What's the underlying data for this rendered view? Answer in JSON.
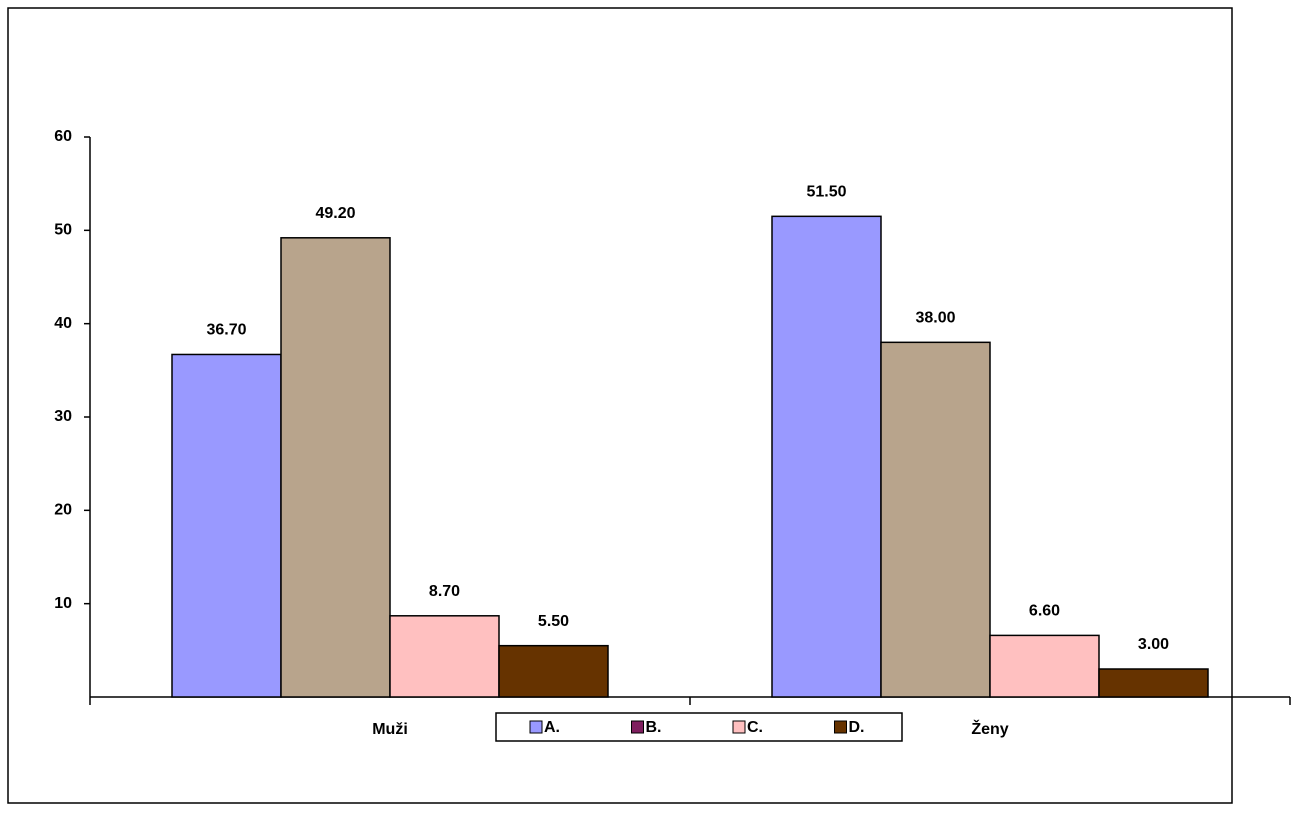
{
  "chart_data": {
    "type": "bar",
    "categories": [
      "Muži",
      "Ženy"
    ],
    "series": [
      {
        "name": "A.",
        "color": "#9999ff",
        "legend_color": "#9999ff",
        "values": [
          36.7,
          51.5
        ],
        "value_labels": [
          "36.70",
          "51.50"
        ]
      },
      {
        "name": "B.",
        "color": "#b8a48c",
        "legend_color": "#7f1f5f",
        "values": [
          49.2,
          38.0
        ],
        "value_labels": [
          "49.20",
          "38.00"
        ]
      },
      {
        "name": "C.",
        "color": "#ffc0c0",
        "legend_color": "#ffc0c0",
        "values": [
          8.7,
          6.6
        ],
        "value_labels": [
          "8.70",
          "6.60"
        ]
      },
      {
        "name": "D.",
        "color": "#663300",
        "legend_color": "#663300",
        "values": [
          5.5,
          3.0
        ],
        "value_labels": [
          "5.50",
          "3.00"
        ]
      }
    ],
    "ylim": [
      0,
      60
    ],
    "yticks": [
      10,
      20,
      30,
      40,
      50,
      60
    ],
    "grid": false,
    "legend": "bottom"
  }
}
